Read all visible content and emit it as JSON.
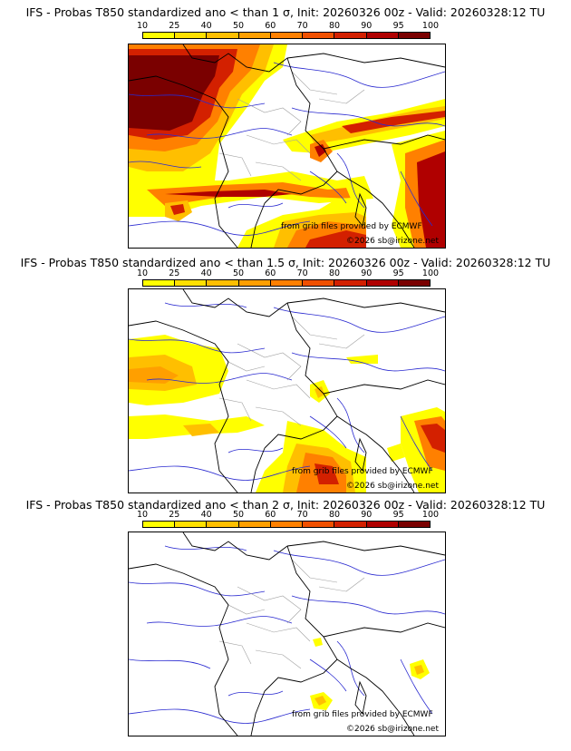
{
  "legend": {
    "ticks": [
      "10",
      "25",
      "40",
      "50",
      "60",
      "70",
      "80",
      "90",
      "95",
      "100"
    ],
    "colors": [
      "#ffff00",
      "#ffe000",
      "#ffbf00",
      "#ff9f00",
      "#ff8000",
      "#f05000",
      "#d32000",
      "#b00000",
      "#7a0000"
    ]
  },
  "colors": {
    "country_border": "#000000",
    "region_border": "#a0a0a0",
    "river": "#2a2ad0"
  },
  "panels": [
    {
      "title": "IFS - Probas T850  standardized ano < than 1 σ, Init: 20260326 00z - Valid: 20260328:12 TU",
      "credit_source": "from grib files provided by ECMWF",
      "credit_copyright": "©2026 sb@irizone.net"
    },
    {
      "title": "IFS - Probas T850  standardized ano < than 1.5 σ, Init: 20260326 00z - Valid: 20260328:12 TU",
      "credit_source": "from grib files provided by ECMWF",
      "credit_copyright": "©2026 sb@irizone.net"
    },
    {
      "title": "IFS - Probas T850  standardized ano < than 2 σ, Init: 20260326 00z - Valid: 20260328:12 TU",
      "credit_source": "from grib files provided by ECMWF",
      "credit_copyright": "©2026 sb@irizone.net"
    }
  ]
}
